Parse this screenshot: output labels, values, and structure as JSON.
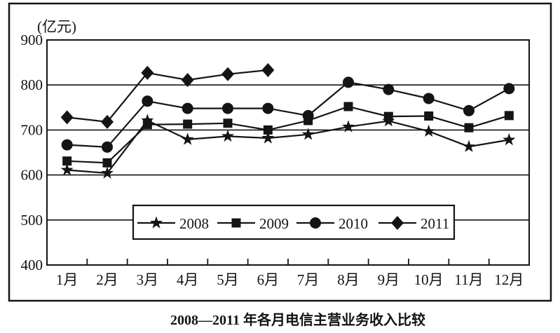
{
  "chart_data": {
    "type": "line",
    "title": "2008—2011 年各月电信主营业务收入比较",
    "unit_label": "(亿元)",
    "categories": [
      "1月",
      "2月",
      "3月",
      "4月",
      "5月",
      "6月",
      "7月",
      "8月",
      "9月",
      "10月",
      "11月",
      "12月"
    ],
    "y_ticks": [
      "900",
      "800",
      "700",
      "600",
      "500",
      "400"
    ],
    "ylim": [
      400,
      900
    ],
    "grid": "horizontal-gridlines-every-100",
    "legend": {
      "position": "inside-bottom-center",
      "entries": [
        "2008",
        "2009",
        "2010",
        "2011"
      ]
    },
    "series": [
      {
        "name": "2008",
        "marker": "star",
        "values": [
          611,
          604,
          721,
          679,
          686,
          682,
          690,
          707,
          720,
          697,
          663,
          678
        ]
      },
      {
        "name": "2009",
        "marker": "square",
        "values": [
          631,
          627,
          712,
          713,
          715,
          700,
          721,
          752,
          730,
          731,
          705,
          732
        ]
      },
      {
        "name": "2010",
        "marker": "circle",
        "values": [
          667,
          662,
          764,
          748,
          748,
          748,
          732,
          806,
          790,
          770,
          743,
          792
        ]
      },
      {
        "name": "2011",
        "marker": "diamond",
        "values": [
          728,
          718,
          827,
          811,
          824,
          833
        ]
      }
    ],
    "colors": {
      "ink": "#141414",
      "paper": "#ffffff"
    }
  }
}
